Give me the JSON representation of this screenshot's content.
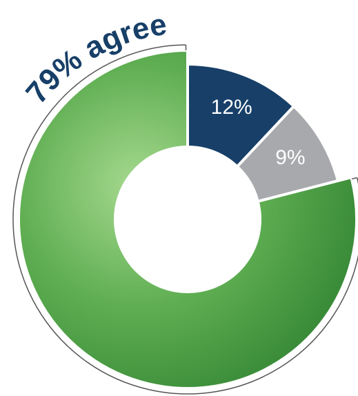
{
  "chart_data": {
    "type": "pie",
    "values": [
      12,
      9,
      79
    ],
    "value_labels": [
      "12%",
      "9%",
      "79% agree"
    ],
    "colors": [
      "#173f68",
      "#a7a9ac",
      "#3f9a3c"
    ]
  }
}
